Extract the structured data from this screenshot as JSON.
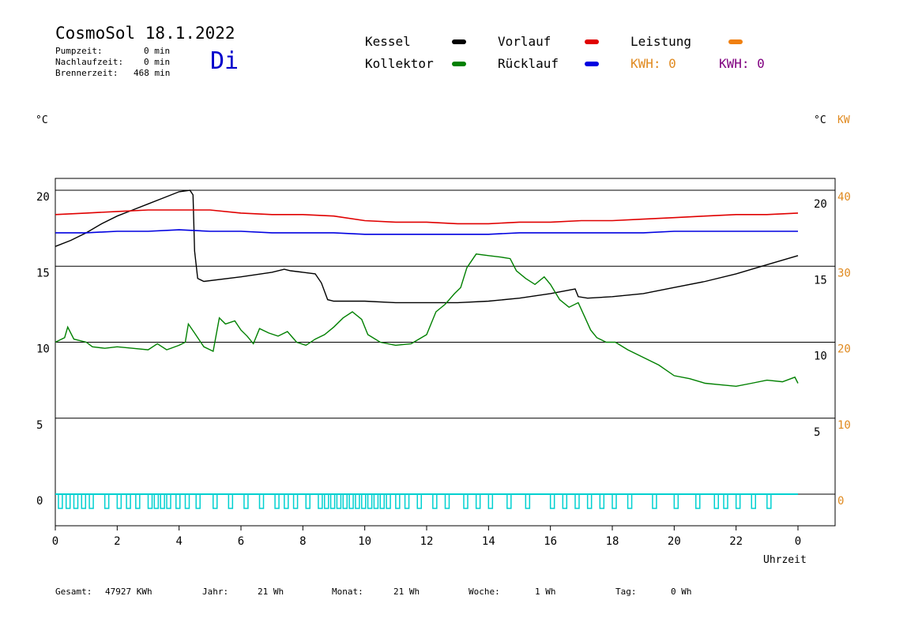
{
  "header": {
    "title": "CosmoSol 18.1.2022",
    "weekday": "Di",
    "info": [
      {
        "label": "Pumpzeit:",
        "value": "0 min"
      },
      {
        "label": "Nachlaufzeit:",
        "value": "0 min"
      },
      {
        "label": "Brennerzeit:",
        "value": "468 min"
      }
    ]
  },
  "legend": {
    "kessel": {
      "label": "Kessel",
      "color": "#000000"
    },
    "vorlauf": {
      "label": "Vorlauf",
      "color": "#e00000"
    },
    "leistung": {
      "label": "Leistung",
      "color": "#f08010"
    },
    "kollektor": {
      "label": "Kollektor",
      "color": "#008000"
    },
    "ruecklauf": {
      "label": "Rücklauf",
      "color": "#0000e0"
    },
    "kwh_orange": "KWH: 0",
    "kwh_purple": "KWH: 0",
    "kwh_orange_color": "#e08a20",
    "kwh_purple_color": "#800080"
  },
  "axes": {
    "left_unit": "°C",
    "right_unit": "°C",
    "right_unit2": "KW",
    "x_label": "Uhrzeit"
  },
  "footer": {
    "gesamt": {
      "label": "Gesamt:",
      "value": "47927 KWh"
    },
    "jahr": {
      "label": "Jahr:",
      "value": "21 Wh"
    },
    "monat": {
      "label": "Monat:",
      "value": "21 Wh"
    },
    "woche": {
      "label": "Woche:",
      "value": "1 Wh"
    },
    "tag": {
      "label": "Tag:",
      "value": "0 Wh"
    }
  },
  "chart_data": {
    "type": "line",
    "xlabel": "Uhrzeit",
    "xlim": [
      0,
      24
    ],
    "x_ticks": [
      "0",
      "2",
      "4",
      "6",
      "8",
      "10",
      "12",
      "14",
      "16",
      "18",
      "20",
      "22",
      "0"
    ],
    "ylim": [
      -1.5,
      21.5
    ],
    "y_ticks_left": [
      "0",
      "5",
      "10",
      "15",
      "20"
    ],
    "y_ticks_right_c": [
      "5",
      "10",
      "15",
      "20"
    ],
    "y_ticks_right_kw": [
      "0",
      "10",
      "20",
      "30",
      "40"
    ],
    "series": [
      {
        "name": "Kessel",
        "color": "#000000",
        "points": [
          [
            0,
            16.3
          ],
          [
            0.5,
            16.7
          ],
          [
            1,
            17.2
          ],
          [
            1.5,
            17.8
          ],
          [
            2,
            18.3
          ],
          [
            2.5,
            18.7
          ],
          [
            3,
            19.1
          ],
          [
            3.5,
            19.5
          ],
          [
            4,
            19.9
          ],
          [
            4.35,
            20.0
          ],
          [
            4.45,
            19.7
          ],
          [
            4.5,
            16
          ],
          [
            4.6,
            14.2
          ],
          [
            4.8,
            14.0
          ],
          [
            6,
            14.3
          ],
          [
            7,
            14.6
          ],
          [
            7.4,
            14.8
          ],
          [
            7.6,
            14.7
          ],
          [
            8.0,
            14.6
          ],
          [
            8.4,
            14.5
          ],
          [
            8.6,
            13.9
          ],
          [
            8.8,
            12.8
          ],
          [
            9.0,
            12.7
          ],
          [
            10,
            12.7
          ],
          [
            11,
            12.6
          ],
          [
            12,
            12.6
          ],
          [
            13,
            12.6
          ],
          [
            14,
            12.7
          ],
          [
            15,
            12.9
          ],
          [
            16,
            13.2
          ],
          [
            16.8,
            13.5
          ],
          [
            16.9,
            13.0
          ],
          [
            17.2,
            12.9
          ],
          [
            18,
            13.0
          ],
          [
            19,
            13.2
          ],
          [
            20,
            13.6
          ],
          [
            21,
            14.0
          ],
          [
            22,
            14.5
          ],
          [
            23,
            15.1
          ],
          [
            24,
            15.7
          ]
        ]
      },
      {
        "name": "Vorlauf",
        "color": "#e00000",
        "points": [
          [
            0,
            18.4
          ],
          [
            1,
            18.5
          ],
          [
            2,
            18.6
          ],
          [
            3,
            18.7
          ],
          [
            4,
            18.7
          ],
          [
            5,
            18.7
          ],
          [
            6,
            18.5
          ],
          [
            7,
            18.4
          ],
          [
            8,
            18.4
          ],
          [
            9,
            18.3
          ],
          [
            10,
            18.0
          ],
          [
            11,
            17.9
          ],
          [
            12,
            17.9
          ],
          [
            13,
            17.8
          ],
          [
            14,
            17.8
          ],
          [
            15,
            17.9
          ],
          [
            16,
            17.9
          ],
          [
            17,
            18.0
          ],
          [
            18,
            18.0
          ],
          [
            19,
            18.1
          ],
          [
            20,
            18.2
          ],
          [
            21,
            18.3
          ],
          [
            22,
            18.4
          ],
          [
            23,
            18.4
          ],
          [
            24,
            18.5
          ]
        ]
      },
      {
        "name": "Rücklauf",
        "color": "#0000e0",
        "points": [
          [
            0,
            17.2
          ],
          [
            1,
            17.2
          ],
          [
            2,
            17.3
          ],
          [
            3,
            17.3
          ],
          [
            4,
            17.4
          ],
          [
            5,
            17.3
          ],
          [
            6,
            17.3
          ],
          [
            7,
            17.2
          ],
          [
            8,
            17.2
          ],
          [
            9,
            17.2
          ],
          [
            10,
            17.1
          ],
          [
            11,
            17.1
          ],
          [
            12,
            17.1
          ],
          [
            13,
            17.1
          ],
          [
            14,
            17.1
          ],
          [
            15,
            17.2
          ],
          [
            16,
            17.2
          ],
          [
            17,
            17.2
          ],
          [
            18,
            17.2
          ],
          [
            19,
            17.2
          ],
          [
            20,
            17.3
          ],
          [
            21,
            17.3
          ],
          [
            22,
            17.3
          ],
          [
            23,
            17.3
          ],
          [
            24,
            17.3
          ]
        ]
      },
      {
        "name": "Kollektor",
        "color": "#008000",
        "points": [
          [
            0,
            10.0
          ],
          [
            0.3,
            10.3
          ],
          [
            0.4,
            11.0
          ],
          [
            0.6,
            10.2
          ],
          [
            1,
            10.0
          ],
          [
            1.2,
            9.7
          ],
          [
            1.6,
            9.6
          ],
          [
            2,
            9.7
          ],
          [
            2.5,
            9.6
          ],
          [
            3,
            9.5
          ],
          [
            3.3,
            9.9
          ],
          [
            3.6,
            9.5
          ],
          [
            4,
            9.8
          ],
          [
            4.2,
            10.0
          ],
          [
            4.3,
            11.2
          ],
          [
            4.5,
            10.6
          ],
          [
            4.8,
            9.7
          ],
          [
            5.1,
            9.4
          ],
          [
            5.3,
            11.6
          ],
          [
            5.5,
            11.2
          ],
          [
            5.8,
            11.4
          ],
          [
            6.0,
            10.8
          ],
          [
            6.2,
            10.4
          ],
          [
            6.4,
            9.9
          ],
          [
            6.6,
            10.9
          ],
          [
            6.9,
            10.6
          ],
          [
            7.2,
            10.4
          ],
          [
            7.5,
            10.7
          ],
          [
            7.8,
            10.0
          ],
          [
            8.1,
            9.8
          ],
          [
            8.4,
            10.2
          ],
          [
            8.7,
            10.5
          ],
          [
            9.0,
            11.0
          ],
          [
            9.3,
            11.6
          ],
          [
            9.6,
            12.0
          ],
          [
            9.9,
            11.5
          ],
          [
            10.1,
            10.5
          ],
          [
            10.5,
            10.0
          ],
          [
            11,
            9.8
          ],
          [
            11.5,
            9.9
          ],
          [
            12,
            10.5
          ],
          [
            12.3,
            12.0
          ],
          [
            12.6,
            12.5
          ],
          [
            12.9,
            13.2
          ],
          [
            13.1,
            13.6
          ],
          [
            13.3,
            14.9
          ],
          [
            13.6,
            15.8
          ],
          [
            14,
            15.7
          ],
          [
            14.4,
            15.6
          ],
          [
            14.7,
            15.5
          ],
          [
            14.9,
            14.7
          ],
          [
            15.2,
            14.2
          ],
          [
            15.5,
            13.8
          ],
          [
            15.8,
            14.3
          ],
          [
            16,
            13.8
          ],
          [
            16.3,
            12.8
          ],
          [
            16.6,
            12.3
          ],
          [
            16.9,
            12.6
          ],
          [
            17.1,
            11.7
          ],
          [
            17.3,
            10.8
          ],
          [
            17.5,
            10.3
          ],
          [
            17.8,
            10.0
          ],
          [
            18.1,
            10.0
          ],
          [
            18.5,
            9.5
          ],
          [
            19.0,
            9.0
          ],
          [
            19.5,
            8.5
          ],
          [
            20,
            7.8
          ],
          [
            20.5,
            7.6
          ],
          [
            21,
            7.3
          ],
          [
            21.5,
            7.2
          ],
          [
            22,
            7.1
          ],
          [
            22.5,
            7.3
          ],
          [
            23,
            7.5
          ],
          [
            23.5,
            7.4
          ],
          [
            23.9,
            7.7
          ],
          [
            24,
            7.3
          ]
        ]
      }
    ],
    "pump_pulses_x": [
      0.1,
      0.35,
      0.6,
      0.85,
      1.1,
      1.6,
      2.0,
      2.3,
      2.6,
      3.0,
      3.2,
      3.4,
      3.6,
      3.9,
      4.2,
      4.55,
      5.1,
      5.6,
      6.1,
      6.6,
      7.1,
      7.4,
      7.7,
      8.1,
      8.5,
      8.7,
      8.9,
      9.1,
      9.3,
      9.5,
      9.7,
      9.9,
      10.1,
      10.3,
      10.5,
      10.7,
      11.0,
      11.3,
      11.7,
      12.2,
      12.6,
      13.2,
      13.6,
      14.0,
      14.6,
      15.2,
      16.0,
      16.4,
      16.8,
      17.2,
      17.6,
      18.0,
      18.5,
      19.3,
      20.0,
      20.7,
      21.3,
      21.6,
      22.0,
      22.5,
      23.0
    ]
  }
}
